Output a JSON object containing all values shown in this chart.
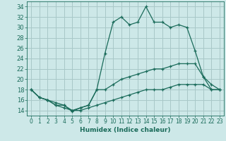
{
  "xlabel": "Humidex (Indice chaleur)",
  "bg_color": "#cde8e8",
  "grid_color": "#a8c8c8",
  "line_color": "#1a6b5a",
  "xlim": [
    -0.5,
    23.5
  ],
  "ylim": [
    13,
    35
  ],
  "yticks": [
    14,
    16,
    18,
    20,
    22,
    24,
    26,
    28,
    30,
    32,
    34
  ],
  "xticks": [
    0,
    1,
    2,
    3,
    4,
    5,
    6,
    7,
    8,
    9,
    10,
    11,
    12,
    13,
    14,
    15,
    16,
    17,
    18,
    19,
    20,
    21,
    22,
    23
  ],
  "series": [
    {
      "x": [
        0,
        1,
        2,
        3,
        4,
        5,
        6,
        7,
        8,
        9,
        10,
        11,
        12,
        13,
        14,
        15,
        16,
        17,
        18,
        19,
        20,
        21,
        22,
        23
      ],
      "y": [
        18,
        16.5,
        16,
        15,
        15,
        13.8,
        14.5,
        15,
        18,
        25,
        31,
        32,
        30.5,
        31,
        34,
        31,
        31,
        30,
        30.5,
        30,
        25.5,
        20.5,
        18,
        18
      ]
    },
    {
      "x": [
        0,
        1,
        2,
        3,
        4,
        5,
        6,
        7,
        8,
        9,
        10,
        11,
        12,
        13,
        14,
        15,
        16,
        17,
        18,
        19,
        20,
        21,
        22,
        23
      ],
      "y": [
        18,
        16.5,
        16,
        15.5,
        15,
        14,
        14.5,
        15,
        18,
        18,
        19,
        20,
        20.5,
        21,
        21.5,
        22,
        22,
        22.5,
        23,
        23,
        23,
        20.5,
        19,
        18
      ]
    },
    {
      "x": [
        0,
        1,
        2,
        3,
        4,
        5,
        6,
        7,
        8,
        9,
        10,
        11,
        12,
        13,
        14,
        15,
        16,
        17,
        18,
        19,
        20,
        21,
        22,
        23
      ],
      "y": [
        18,
        16.5,
        16,
        15,
        14.5,
        14,
        14,
        14.5,
        15,
        15.5,
        16,
        16.5,
        17,
        17.5,
        18,
        18,
        18,
        18.5,
        19,
        19,
        19,
        19,
        18,
        18
      ]
    }
  ]
}
